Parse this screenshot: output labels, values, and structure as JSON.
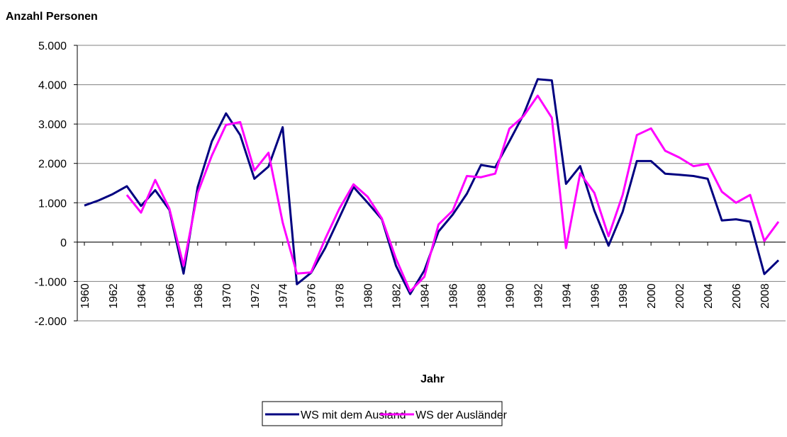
{
  "chart_data": {
    "type": "line",
    "title": "Anzahl Personen",
    "x_label": "Jahr",
    "x": [
      1960,
      1961,
      1962,
      1963,
      1964,
      1965,
      1966,
      1967,
      1968,
      1969,
      1970,
      1971,
      1972,
      1973,
      1974,
      1975,
      1976,
      1977,
      1978,
      1979,
      1980,
      1981,
      1982,
      1983,
      1984,
      1985,
      1986,
      1987,
      1988,
      1989,
      1990,
      1991,
      1992,
      1993,
      1994,
      1995,
      1996,
      1997,
      1998,
      1999,
      2000,
      2001,
      2002,
      2003,
      2004,
      2005,
      2006,
      2007,
      2008,
      2009
    ],
    "xlim": [
      1959.5,
      2009.5
    ],
    "xticks": [
      1960,
      1962,
      1964,
      1966,
      1968,
      1970,
      1972,
      1974,
      1976,
      1978,
      1980,
      1982,
      1984,
      1986,
      1988,
      1990,
      1992,
      1994,
      1996,
      1998,
      2000,
      2002,
      2004,
      2006,
      2008
    ],
    "ylim": [
      -2000,
      5000
    ],
    "yticks": [
      {
        "value": -2000,
        "label": "-2.000"
      },
      {
        "value": -1000,
        "label": "-1.000"
      },
      0,
      {
        "value": 1000,
        "label": "1.000"
      },
      {
        "value": 2000,
        "label": "2.000"
      },
      {
        "value": 3000,
        "label": "3.000"
      },
      {
        "value": 4000,
        "label": "4.000"
      },
      {
        "value": 5000,
        "label": "5.000"
      }
    ],
    "grid": true,
    "legend": "bottom",
    "series": [
      {
        "name": "WS mit dem Ausland",
        "color": "#000080",
        "values": [
          930,
          1060,
          1220,
          1420,
          920,
          1320,
          820,
          -800,
          1400,
          2560,
          3270,
          2720,
          1610,
          1920,
          2920,
          -1070,
          -780,
          -150,
          620,
          1400,
          1000,
          580,
          -600,
          -1320,
          -720,
          270,
          700,
          1230,
          1960,
          1900,
          2560,
          3240,
          4140,
          4110,
          1480,
          1930,
          800,
          -90,
          770,
          2060,
          2060,
          1740,
          1710,
          1680,
          1610,
          550,
          580,
          520,
          -810,
          -460
        ]
      },
      {
        "name": "WS der Ausländer",
        "color": "#ff00ff",
        "values": [
          null,
          null,
          null,
          1200,
          750,
          1580,
          850,
          -600,
          1250,
          2200,
          2980,
          3050,
          1820,
          2270,
          500,
          -800,
          -770,
          80,
          850,
          1470,
          1150,
          600,
          -420,
          -1250,
          -880,
          450,
          800,
          1680,
          1650,
          1740,
          2880,
          3200,
          3720,
          3160,
          -150,
          1750,
          1250,
          150,
          1200,
          2720,
          2890,
          2320,
          2150,
          1930,
          1990,
          1280,
          1000,
          1200,
          30,
          520
        ]
      }
    ]
  }
}
